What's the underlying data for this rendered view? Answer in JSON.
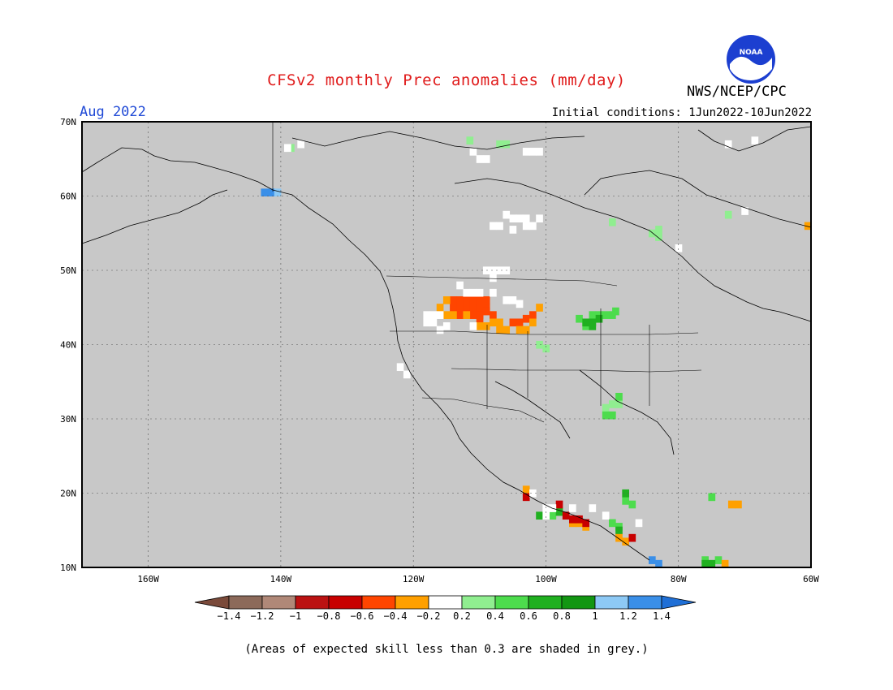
{
  "header": {
    "title": "CFSv2 monthly Prec anomalies (mm/day)",
    "organization": "NWS/NCEP/CPC",
    "logo_text": "NOAA",
    "forecast_month": "Aug 2022",
    "initial_conditions": "Initial conditions: 1Jun2022-10Jun2022"
  },
  "map": {
    "background_color": "#c8c8c8",
    "lat_labels": [
      "70N",
      "60N",
      "50N",
      "40N",
      "30N",
      "20N",
      "10N"
    ],
    "lat_values": [
      70,
      60,
      50,
      40,
      30,
      20,
      10
    ],
    "lon_labels": [
      "160W",
      "140W",
      "120W",
      "100W",
      "80W",
      "60W"
    ],
    "lon_values": [
      -160,
      -140,
      -120,
      -100,
      -80,
      -60
    ],
    "extent": {
      "lon_min": -170,
      "lon_max": -60,
      "lat_min": 10,
      "lat_max": 70
    },
    "anomaly_regions": [
      {
        "category": "above_0.2_0.4",
        "color": "#90ee90",
        "cells": [
          [
            -138.5,
            66.5
          ],
          [
            -111.5,
            67.5
          ],
          [
            -107,
            67
          ],
          [
            -106,
            67
          ],
          [
            -90,
            56.5
          ],
          [
            -83,
            55.5
          ],
          [
            -83,
            54.5
          ],
          [
            -84,
            55
          ],
          [
            -72.5,
            57.5
          ],
          [
            -101,
            40
          ],
          [
            -100,
            39.5
          ],
          [
            -94,
            43
          ],
          [
            -91,
            31.5
          ],
          [
            -90,
            32
          ],
          [
            -89,
            32
          ],
          [
            -75,
            19.5
          ]
        ]
      },
      {
        "category": "above_0.4_0.6",
        "color": "#4ddc4d",
        "cells": [
          [
            -93,
            44
          ],
          [
            -92,
            44
          ],
          [
            -91,
            44
          ],
          [
            -90,
            44
          ],
          [
            -89.5,
            44.5
          ],
          [
            -95,
            43.5
          ],
          [
            -94,
            42.5
          ],
          [
            -89,
            33
          ],
          [
            -91,
            30.5
          ],
          [
            -90,
            30.5
          ],
          [
            -89,
            15.5
          ],
          [
            -90,
            16
          ],
          [
            -88,
            19
          ],
          [
            -87,
            18.5
          ],
          [
            -99,
            17
          ],
          [
            -75,
            19.5
          ],
          [
            -76,
            11
          ],
          [
            -74,
            11
          ]
        ]
      },
      {
        "category": "above_0.6_0.8",
        "color": "#20b020",
        "cells": [
          [
            -94,
            43
          ],
          [
            -93,
            43
          ],
          [
            -92,
            43.5
          ],
          [
            -93,
            42.5
          ],
          [
            -98,
            17.5
          ],
          [
            -101,
            17
          ],
          [
            -88,
            20
          ],
          [
            -89,
            15
          ],
          [
            -75,
            10.5
          ],
          [
            -76,
            10.5
          ]
        ]
      },
      {
        "category": "above_1.2_1.4",
        "color": "#3a8fe8",
        "cells": [
          [
            -141.5,
            60.5
          ],
          [
            -142.5,
            60.5
          ],
          [
            -84,
            11
          ],
          [
            -83,
            10.5
          ]
        ]
      },
      {
        "category": "above_1.0_1.2",
        "color": "#8dc9f5",
        "cells": [
          [
            -140.5,
            60.5
          ]
        ]
      },
      {
        "category": "below_0.4_0.6",
        "color": "#ff4500",
        "cells": [
          [
            -114,
            46
          ],
          [
            -113,
            46
          ],
          [
            -112,
            46
          ],
          [
            -111,
            46
          ],
          [
            -110,
            46
          ],
          [
            -109,
            46
          ],
          [
            -114,
            45
          ],
          [
            -113,
            45
          ],
          [
            -112,
            45
          ],
          [
            -111,
            45
          ],
          [
            -110,
            45
          ],
          [
            -109,
            45
          ],
          [
            -113,
            44
          ],
          [
            -111,
            44
          ],
          [
            -110,
            44
          ],
          [
            -108,
            44
          ],
          [
            -109,
            44.5
          ],
          [
            -104,
            43
          ],
          [
            -102,
            44
          ],
          [
            -103,
            43.5
          ],
          [
            -105,
            43
          ],
          [
            -110,
            43.5
          ]
        ]
      },
      {
        "category": "below_0.2_0.4",
        "color": "#ffa000",
        "cells": [
          [
            -115,
            46
          ],
          [
            -116,
            45
          ],
          [
            -115,
            44
          ],
          [
            -114,
            44
          ],
          [
            -112,
            44
          ],
          [
            -110,
            42.5
          ],
          [
            -109,
            42.5
          ],
          [
            -108,
            43
          ],
          [
            -107,
            43
          ],
          [
            -106,
            42
          ],
          [
            -107,
            42
          ],
          [
            -104,
            42
          ],
          [
            -103,
            42
          ],
          [
            -102,
            43
          ],
          [
            -101,
            45
          ],
          [
            -103,
            20.5
          ],
          [
            -96,
            16
          ],
          [
            -95,
            16
          ],
          [
            -94,
            15.5
          ],
          [
            -89,
            14
          ],
          [
            -88,
            13.5
          ],
          [
            -72,
            18.5
          ],
          [
            -71,
            18.5
          ],
          [
            -60.5,
            56
          ],
          [
            -73,
            10.5
          ]
        ]
      },
      {
        "category": "below_0.8_1.0",
        "color": "#c80000",
        "cells": [
          [
            -97,
            17
          ],
          [
            -96,
            16.5
          ],
          [
            -95,
            16.5
          ],
          [
            -94,
            16
          ],
          [
            -98,
            18.5
          ],
          [
            -103,
            19.5
          ],
          [
            -87,
            14
          ]
        ]
      },
      {
        "category": "near_normal",
        "color": "#ffffff",
        "cells": [
          [
            -139,
            66.5
          ],
          [
            -137,
            67
          ],
          [
            -111,
            66
          ],
          [
            -110,
            65
          ],
          [
            -109,
            65
          ],
          [
            -103,
            66
          ],
          [
            -102,
            66
          ],
          [
            -101,
            66
          ],
          [
            -106,
            57.5
          ],
          [
            -105,
            57
          ],
          [
            -104,
            57
          ],
          [
            -103,
            57
          ],
          [
            -101,
            57
          ],
          [
            -102,
            56
          ],
          [
            -103,
            56
          ],
          [
            -108,
            56
          ],
          [
            -107,
            56
          ],
          [
            -105,
            55.5
          ],
          [
            -109,
            50
          ],
          [
            -108,
            50
          ],
          [
            -107,
            50
          ],
          [
            -106,
            50
          ],
          [
            -108,
            49
          ],
          [
            -113,
            48
          ],
          [
            -112,
            47
          ],
          [
            -111,
            47
          ],
          [
            -110,
            47
          ],
          [
            -108,
            47
          ],
          [
            -106,
            46
          ],
          [
            -105,
            46
          ],
          [
            -104,
            45.5
          ],
          [
            -118,
            44
          ],
          [
            -117,
            44
          ],
          [
            -116,
            44
          ],
          [
            -118,
            43
          ],
          [
            -117,
            43
          ],
          [
            -116,
            42
          ],
          [
            -115,
            42.5
          ],
          [
            -111,
            42.5
          ],
          [
            -122,
            37
          ],
          [
            -121,
            36
          ],
          [
            -72.5,
            67
          ],
          [
            -68.5,
            67.5
          ],
          [
            -70,
            58
          ],
          [
            -80,
            53
          ],
          [
            -102,
            20
          ],
          [
            -100,
            18
          ],
          [
            -100,
            17
          ],
          [
            -99,
            18
          ],
          [
            -96,
            18
          ],
          [
            -93,
            18
          ],
          [
            -91,
            17
          ],
          [
            -86,
            16
          ]
        ]
      }
    ]
  },
  "colorbar": {
    "colors": [
      "#7a4a3a",
      "#8c6a5a",
      "#b08878",
      "#bb1212",
      "#c80000",
      "#ff4500",
      "#ffa000",
      "#ffffff",
      "#90ee90",
      "#4ddc4d",
      "#20b020",
      "#129612",
      "#8dc9f5",
      "#3a8fe8",
      "#1f6fd6"
    ],
    "tick_labels": [
      "-1.4",
      "-1.2",
      "-1",
      "-0.8",
      "-0.6",
      "-0.4",
      "-0.2",
      "0.2",
      "0.4",
      "0.6",
      "0.8",
      "1",
      "1.2",
      "1.4"
    ]
  },
  "footer": {
    "note": "(Areas of expected skill less than 0.3 are shaded in grey.)"
  }
}
